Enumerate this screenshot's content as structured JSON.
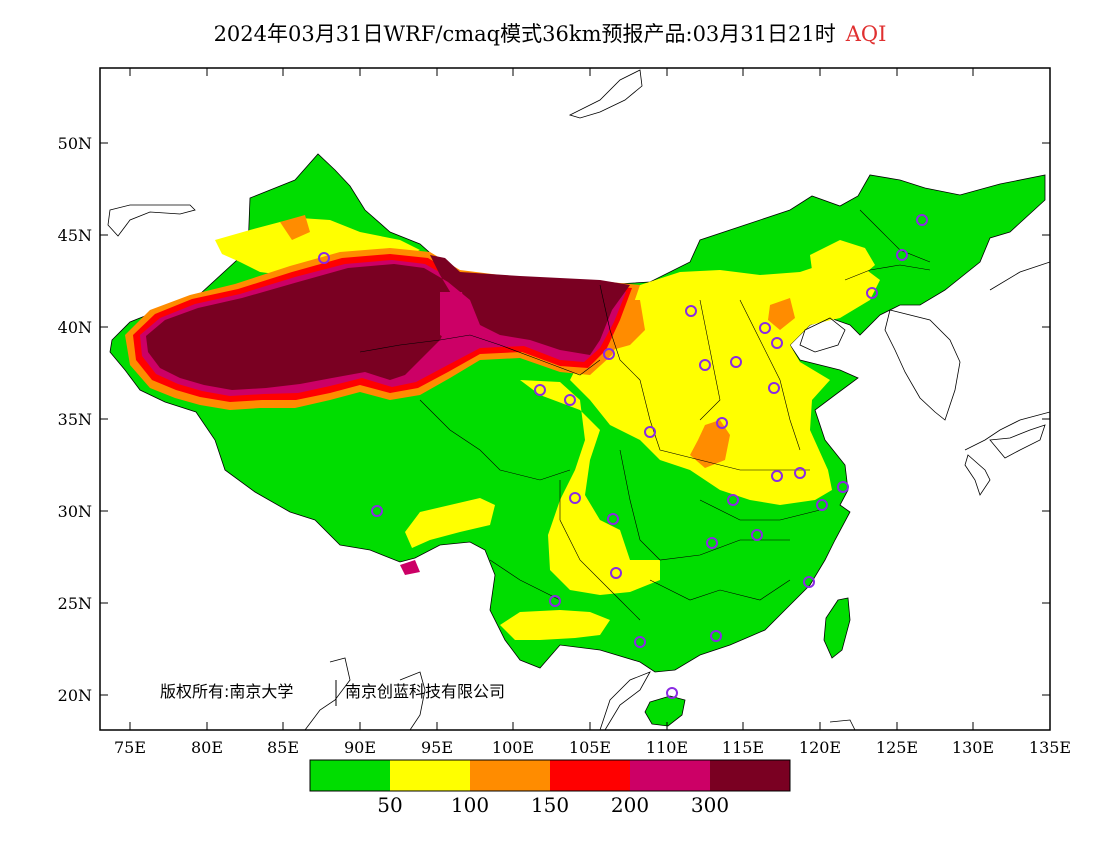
{
  "title": {
    "main": "2024年03月31日WRF/cmaq模式36km预报产品:03月31日21时",
    "variable": "AQI"
  },
  "map": {
    "lon_range": [
      73,
      135
    ],
    "lat_range": [
      18,
      54
    ],
    "y_ticks": [
      "50N",
      "45N",
      "40N",
      "35N",
      "30N",
      "25N",
      "20N"
    ],
    "x_ticks": [
      "75E",
      "80E",
      "85E",
      "90E",
      "95E",
      "100E",
      "105E",
      "110E",
      "115E",
      "120E",
      "125E",
      "130E",
      "135E"
    ]
  },
  "copyright": {
    "holder": "版权所有:南京大学",
    "partner": "南京创蓝科技有限公司"
  },
  "legend": {
    "colors": [
      "#00dd00",
      "#ffff00",
      "#ff8c00",
      "#ff0000",
      "#cc0066",
      "#7a0022"
    ],
    "labels": [
      "50",
      "100",
      "150",
      "200",
      "300"
    ]
  },
  "colors": {
    "good": "#00dd00",
    "moderate": "#ffff00",
    "sensitive": "#ff8c00",
    "unhealthy": "#ff0000",
    "very_unhealthy": "#cc0066",
    "hazardous": "#7a0022",
    "station_marker": "#8a2be2"
  },
  "stations": {
    "marker": "circle",
    "count": 36
  }
}
